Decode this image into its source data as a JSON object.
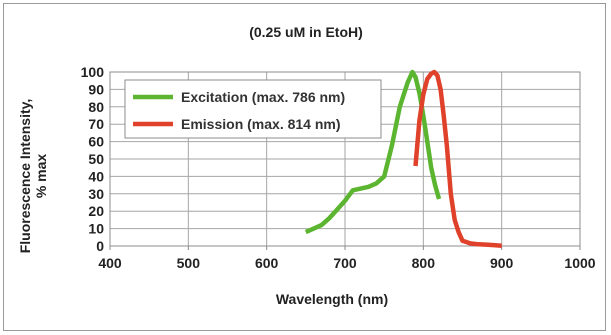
{
  "chart_data": {
    "type": "line",
    "title": "(0.25 uM in EtoH)",
    "xlabel": "Wavelength (nm)",
    "ylabel_lines": [
      "Fluorescence Intensity,",
      "% max"
    ],
    "xlim": [
      400,
      1000
    ],
    "ylim": [
      0,
      100
    ],
    "xticks": [
      400,
      500,
      600,
      700,
      800,
      900,
      1000
    ],
    "yticks": [
      0,
      10,
      20,
      30,
      40,
      50,
      60,
      70,
      80,
      90,
      100
    ],
    "grid": true,
    "legend_position": "top-left",
    "series": [
      {
        "name": "Excitation (max. 786 nm)",
        "color": "#5cb531",
        "x": [
          650,
          660,
          670,
          680,
          690,
          700,
          710,
          720,
          730,
          740,
          750,
          760,
          770,
          780,
          786,
          790,
          795,
          800,
          805,
          810,
          815,
          820
        ],
        "y": [
          8,
          10,
          12,
          16,
          21,
          26,
          32,
          33,
          34,
          36,
          40,
          58,
          80,
          94,
          100,
          97,
          88,
          75,
          60,
          45,
          35,
          27
        ]
      },
      {
        "name": "Emission (max. 814 nm)",
        "color": "#e0412b",
        "x": [
          790,
          795,
          800,
          805,
          810,
          814,
          818,
          822,
          826,
          830,
          835,
          840,
          845,
          850,
          860,
          870,
          880,
          890,
          900
        ],
        "y": [
          46,
          72,
          87,
          96,
          99,
          100,
          98,
          90,
          75,
          58,
          30,
          15,
          8,
          3,
          1.5,
          1,
          0.8,
          0.5,
          0.2
        ]
      }
    ]
  }
}
